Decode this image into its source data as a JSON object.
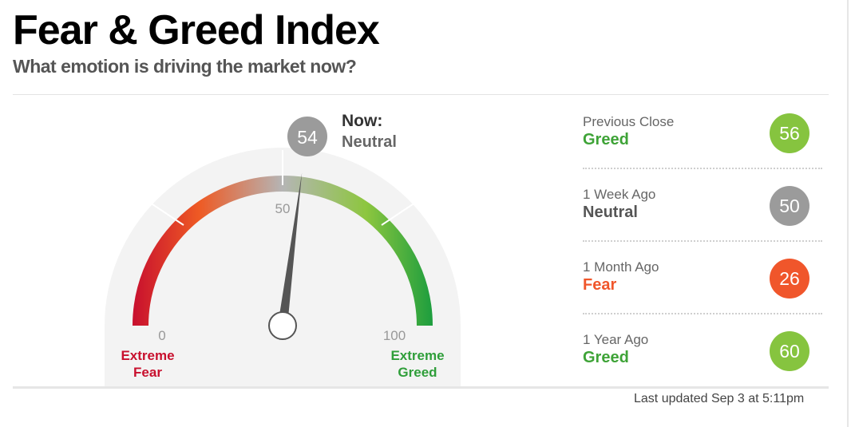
{
  "header": {
    "title": "Fear & Greed Index",
    "subtitle": "What emotion is driving the market now?"
  },
  "gauge": {
    "value": 54,
    "value_text": "54",
    "now_label": "Now:",
    "now_status": "Neutral",
    "min": 0,
    "max": 100,
    "tick_0": "0",
    "tick_50": "50",
    "tick_100": "100",
    "extreme_fear_line1": "Extreme",
    "extreme_fear_line2": "Fear",
    "extreme_greed_line1": "Extreme",
    "extreme_greed_line2": "Greed",
    "colors": {
      "fear": "#c8102e",
      "fear_mid": "#ee5a24",
      "neutral": "#9e9e9e",
      "greed_mid": "#8dc63f",
      "greed": "#1e9e3e",
      "needle": "#555555"
    }
  },
  "history": [
    {
      "label": "Previous Close",
      "status": "Greed",
      "value": "56",
      "status_color": "#3ea337",
      "circle_color": "#86c43f"
    },
    {
      "label": "1 Week Ago",
      "status": "Neutral",
      "value": "50",
      "status_color": "#555555",
      "circle_color": "#9b9b9b"
    },
    {
      "label": "1 Month Ago",
      "status": "Fear",
      "value": "26",
      "status_color": "#f0562b",
      "circle_color": "#f0562b"
    },
    {
      "label": "1 Year Ago",
      "status": "Greed",
      "value": "60",
      "status_color": "#3ea337",
      "circle_color": "#86c43f"
    }
  ],
  "footer": {
    "updated": "Last updated Sep 3 at 5:11pm"
  }
}
